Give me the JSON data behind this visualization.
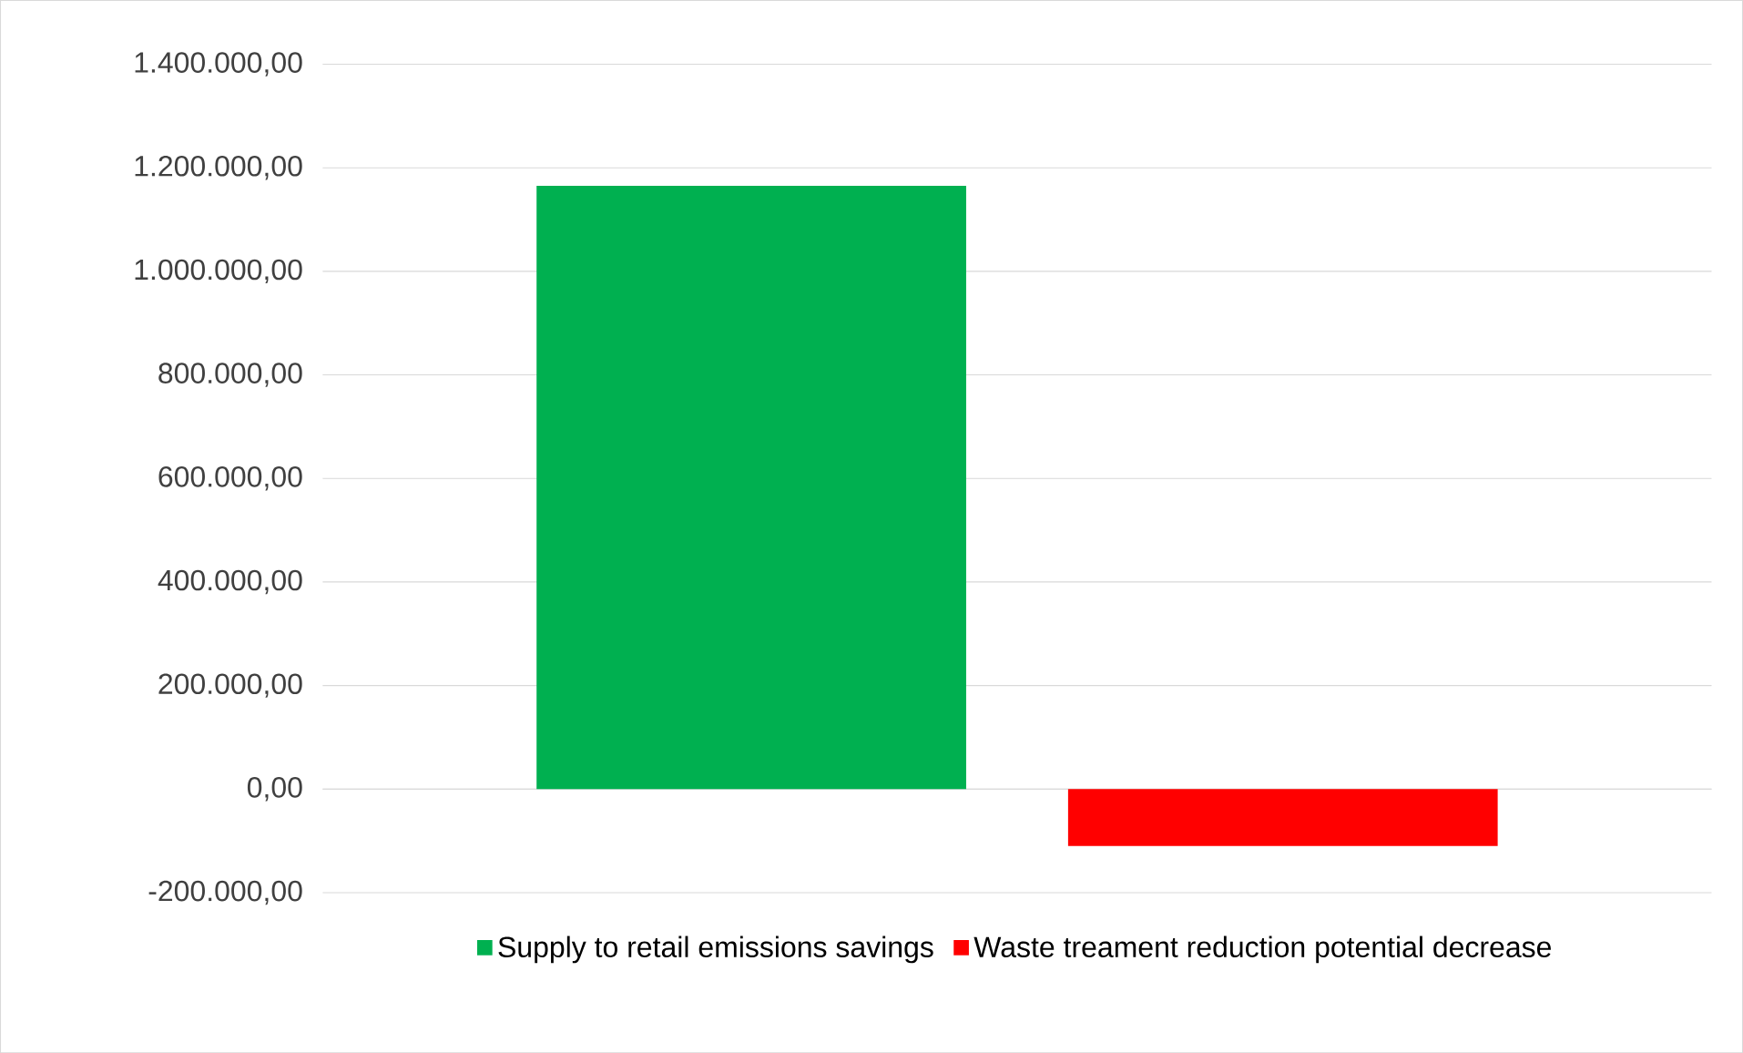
{
  "chart_data": {
    "type": "bar",
    "categories": [
      null
    ],
    "series": [
      {
        "name": "Supply to retail emissions savings",
        "color": "#00b050",
        "values": [
          1165000
        ]
      },
      {
        "name": "Waste treament reduction potential decrease",
        "color": "#ff0000",
        "values": [
          -110000
        ]
      }
    ],
    "ylim": [
      -200000,
      1400000
    ],
    "yticks": [
      {
        "value": -200000,
        "label": "-200.000,00"
      },
      {
        "value": 0,
        "label": "0,00"
      },
      {
        "value": 200000,
        "label": "200.000,00"
      },
      {
        "value": 400000,
        "label": "400.000,00"
      },
      {
        "value": 600000,
        "label": "600.000,00"
      },
      {
        "value": 800000,
        "label": "800.000,00"
      },
      {
        "value": 1000000,
        "label": "1.000.000,00"
      },
      {
        "value": 1200000,
        "label": "1.200.000,00"
      },
      {
        "value": 1400000,
        "label": "1.400.000,00"
      }
    ],
    "grid": "y",
    "legend": "bottom"
  }
}
